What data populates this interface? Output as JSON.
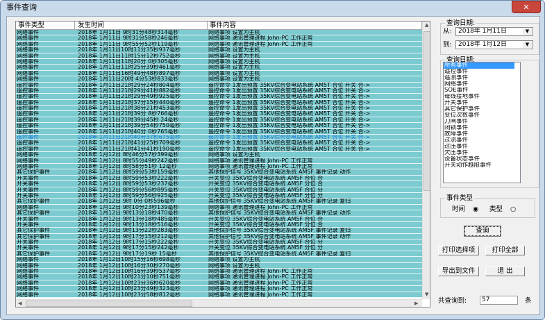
{
  "window": {
    "title": "事件查询",
    "close": "✕"
  },
  "table": {
    "headers": [
      "事件类型",
      "发生时间",
      "事件内容"
    ],
    "selected_row": 18,
    "rows": [
      [
        "网络事件",
        "2018年 1月11日 9时31分48秒314毫秒",
        "网络事项  设置为主机"
      ],
      [
        "网络事件",
        "2018年 1月11日 9时31分58秒246毫秒",
        "网络事项 通讯管理进程 John-PC 工作正常"
      ],
      [
        "网络事件",
        "2018年 1月11日 9时55分52秒119毫秒",
        "网络事项 通讯管理进程 John-PC 工作正常"
      ],
      [
        "网络事件",
        "2018年 1月11日10时11分35秒937毫秒",
        "网络事项  设置为主机"
      ],
      [
        "网络事件",
        "2018年 1月11日11时15分12秒752毫秒",
        "网络事项  设置为主机"
      ],
      [
        "网络事件",
        "2018年 1月11日11时20分 0秒305毫秒",
        "网络事项  设置为主机"
      ],
      [
        "网络事件",
        "2018年 1月11日11时25分39秒461毫秒",
        "网络事项  设置为主机"
      ],
      [
        "网络事件",
        "2018年 1月11日16时49分48秒897毫秒",
        "网络事项  设置为主机"
      ],
      [
        "网络事件",
        "2018年 1月11日20时 4分53秒833毫秒",
        "网络事项  设置为主机"
      ],
      [
        "遥控事件",
        "2018年 1月11日21时29分24秒804毫秒",
        "遥控命令  1发出预置  35KV综合变电站系统 AM5T 合位 开关 合->"
      ],
      [
        "遥控事件",
        "2018年 1月11日21时29分41秒882毫秒",
        "遥控命令  1发出预置  35KV综合变电站系统 AM5T 合位 开关 合->"
      ],
      [
        "遥控事件",
        "2018年 1月11日21时29分49秒925毫秒",
        "遥控命令  1发出预置  35KV综合变电站系统 AM5T 合位 开关 合->"
      ],
      [
        "遥控事件",
        "2018年 1月11日21时37分15秒440毫秒",
        "遥控命令  1发出预置  35KV综合变电站系统 AM5T 合位 开关 合->"
      ],
      [
        "遥控事件",
        "2018年 1月11日21时38分21秒453毫秒",
        "遥控命令  1发出预置  35KV综合变电站系统 AM5T 合位 开关 合->"
      ],
      [
        "遥控事件",
        "2018年 1月11日21时39分 8秒766毫秒",
        "遥控命令  1发出预置  35KV综合变电站系统 AM5T 合位 开关 合->"
      ],
      [
        "遥控事件",
        "2018年 1月11日21时39分45秒 24毫秒",
        "遥控命令  1发出预置  35KV综合变电站系统 AM5T 合位 开关 合->"
      ],
      [
        "遥控事件",
        "2018年 1月11日21时39分54秒750毫秒",
        "遥控命令  1发出预置  35KV综合变电站系统 AM5T 合位 开关 合->"
      ],
      [
        "遥控事件",
        "2018年 1月11日21时40分 0秒765毫秒",
        "遥控命令  1发出预置  35KV综合变电站系统 AM5T 合位 开关 合->"
      ],
      [
        "遥控事件",
        "2018年 1月11日21时40分37秒675毫秒",
        "遥控命令  1发出预置  35KV综合变电站系统 AM5T 合位 开关 合->"
      ],
      [
        "遥控事件",
        "2018年 1月11日21时41分25秒709毫秒",
        "遥控命令  1发出预置  35KV综合变电站系统 AM5T 合位 开关 合->"
      ],
      [
        "遥控事件",
        "2018年 1月11日21时41分41秒190毫秒",
        "遥控命令  1发出预置  35KV综合变电站系统 AM5T 合位 开关 合->"
      ],
      [
        "网络事件",
        "2018年 1月12日 8时46分57秒399毫秒",
        "网络事项  设置为主机"
      ],
      [
        "网络事件",
        "2018年 1月12日 8时55分49秒242毫秒",
        "网络事项 通讯管理进程 John-PC 工作正常"
      ],
      [
        "网络事件",
        "2018年 1月12日 8时58分51秒 12毫秒",
        "网络事项 通讯管理进程 John-PC 工作正常"
      ],
      [
        "其它保护事件",
        "2018年 1月12日 8时59分53秒159毫秒",
        "其他保护信号 35KV综合变电站系统 AM5F 事件记录  动作"
      ],
      [
        "开关事件",
        "2018年 1月12日 8时59分53秒222毫秒",
        "开关变位  35KV综合变电站系统 AM5F 合位  合"
      ],
      [
        "开关事件",
        "2018年 1月12日 8时59分53秒237毫秒",
        "开关变位  35KV综合变电站系统 AM5F 分位  合"
      ],
      [
        "开关事件",
        "2018年 1月12日 8时59分56秒895毫秒",
        "开关变位  35KV综合变电站系统 AM5F 合位  分"
      ],
      [
        "开关事件",
        "2018年 1月12日 8时59分56秒925毫秒",
        "开关变位  35KV综合变电站系统 AM5F 分位  分"
      ],
      [
        "其它保护事件",
        "2018年 1月12日 9时 0分 0秒596毫秒",
        "其他保护信号 35KV综合变电站系统 AM5F 事件记录  复归"
      ],
      [
        "网络事件",
        "2018年 1月12日 9时10分23秒139毫秒",
        "网络事项 通讯管理进程 John-PC 工作正常"
      ],
      [
        "其它保护事件",
        "2018年 1月12日 9时13分18秒470毫秒",
        "其他保护信号 35KV综合变电站系统 AM5F 事件记录  动作"
      ],
      [
        "开关事件",
        "2018年 1月12日 9时13分18秒485毫秒",
        "开关变位  35KV综合变电站系统 AM5F 合位  合"
      ],
      [
        "开关事件",
        "2018年 1月12日 9时13分18秒516毫秒",
        "开关变位  35KV综合变电站系统 AM5F 分位  合"
      ],
      [
        "其它保护事件",
        "2018年 1月12日 9时13分22秒283毫秒",
        "其他保护信号 35KV综合变电站系统 AM5F 事件记录  复归"
      ],
      [
        "其它保护事件",
        "2018年 1月12日 9时17分15秒212毫秒",
        "其他保护信号 35KV综合变电站系统 AM5F 事件记录  动作"
      ],
      [
        "开关事件",
        "2018年 1月12日 9时17分15秒222毫秒",
        "开关变位  35KV综合变电站系统 AM5F 合位  分"
      ],
      [
        "开关事件",
        "2018年 1月12日 9时17分15秒242毫秒",
        "开关变位  35KV综合变电站系统 AM5F 分位  分"
      ],
      [
        "其它保护事件",
        "2018年 1月12日 9时17分19秒 15毫秒",
        "其他保护信号 35KV综合变电站系统 AM5F 事件记录  复归"
      ],
      [
        "网络事件",
        "2018年 1月12日10时15分16秒698毫秒",
        "网络事项  设置为主机"
      ],
      [
        "网络事件",
        "2018年 1月12日10时16分30秒270毫秒",
        "网络事项  设置为主机"
      ],
      [
        "网络事件",
        "2018年 1月12日10时16分39秒537毫秒",
        "网络事项 通讯管理进程 John-PC 工作正常"
      ],
      [
        "网络事件",
        "2018年 1月12日10时21分10秒751毫秒",
        "网络事项 通讯管理进程 John-PC 工作正常"
      ],
      [
        "网络事件",
        "2018年 1月12日10时23分36秒620毫秒",
        "网络事项 通讯管理进程 John-PC 工作正常"
      ],
      [
        "网络事件",
        "2018年 1月12日10时23分49秒323毫秒",
        "网络事项 通讯管理进程 John-PC 工作正常"
      ],
      [
        "网络事件",
        "2018年 1月12日10时23分58秒812毫秒",
        "网络事项 通讯管理进程 John-PC 工作正常"
      ]
    ]
  },
  "date_query": {
    "legend": "查询日期:",
    "from_label": "从:",
    "from_value": "2018年 1月11日",
    "to_label": "到:",
    "to_value": "2018年 1月12日"
  },
  "type_list": {
    "legend": "查询日期:",
    "selected": 0,
    "items": [
      "所有事件",
      "遥控事件",
      "遥测事件",
      "网络事件",
      "SOE事件",
      "母线接地事件",
      "开关事件",
      "其它保护事件",
      "变位次数事件",
      "刀闸事件",
      "闭锁事件",
      "故障事件",
      "过流事件",
      "过压事件",
      "欠压事件",
      "设备状态事件",
      "开关动作越限事件"
    ]
  },
  "sort": {
    "legend": "事件类型",
    "option_time": "时间",
    "option_type": "类型",
    "selected": "时间"
  },
  "buttons": {
    "query": "查询",
    "print_selected": "打印选择项",
    "print_all": "打印全部",
    "export": "导出到文件",
    "exit": "退 出"
  },
  "result": {
    "label": "共查询到:",
    "count": "57",
    "unit": "条"
  },
  "colors": {
    "row_bg": "#7ccbd0",
    "selected_text": "#1a7ad9",
    "list_selected": "#3399ff"
  }
}
